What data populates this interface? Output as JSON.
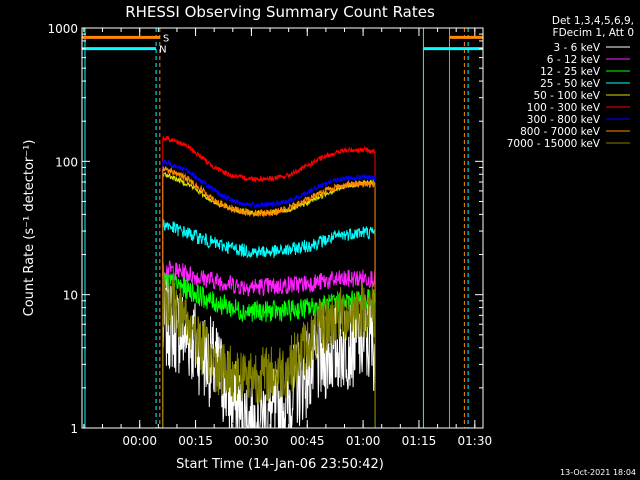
{
  "chart_data": {
    "type": "line",
    "title": "RHESSI Observing Summary Count Rates",
    "xlabel": "Start Time (14-Jan-06 23:50:42)",
    "ylabel": "Count Rate (s⁻¹ detector⁻¹)",
    "x_unit": "minutes after 14-Jan-06 23:50:42",
    "xlim": [
      -6.2,
      101.5
    ],
    "ylim": [
      1,
      1000
    ],
    "yscale": "log",
    "x_ticks": [
      "00:00",
      "00:15",
      "00:30",
      "00:45",
      "01:00",
      "01:15",
      "01:30"
    ],
    "x_tick_values": [
      9.3,
      24.3,
      39.3,
      54.3,
      69.3,
      84.3,
      99.3
    ],
    "y_ticks": [
      "1",
      "10",
      "100",
      "1000"
    ],
    "y_tick_values": [
      1,
      10,
      100,
      1000
    ],
    "legend_position": "top-right",
    "legend_header": [
      "Det 1,3,4,5,6,9,",
      "FDecim 1, Att 0"
    ],
    "series": [
      {
        "name": "3 - 6 keV",
        "color": "#ffffff",
        "x": [
          15.5,
          17,
          19,
          22,
          25,
          28,
          31,
          34,
          37,
          40,
          43,
          46,
          49,
          52,
          55,
          58,
          61,
          64,
          67,
          70,
          72.5
        ],
        "y": [
          5.5,
          6.0,
          5.6,
          5.0,
          4.0,
          3.2,
          2.5,
          1.6,
          1.2,
          1.1,
          1.2,
          1.3,
          1.6,
          2.2,
          2.8,
          3.3,
          3.8,
          4.2,
          4.5,
          4.5,
          4.2
        ]
      },
      {
        "name": "6 - 12 keV",
        "color": "#ff22ff",
        "x": [
          15.5,
          17,
          19,
          22,
          25,
          28,
          31,
          34,
          37,
          40,
          43,
          46,
          49,
          52,
          55,
          58,
          61,
          64,
          67,
          70,
          72.5
        ],
        "y": [
          15,
          15.5,
          15,
          14.5,
          13.5,
          13,
          12.5,
          12,
          11.5,
          11.5,
          11.5,
          11.5,
          11.8,
          12,
          12.2,
          12.5,
          12.8,
          13,
          13.2,
          13.3,
          13.3
        ]
      },
      {
        "name": "12 - 25 keV",
        "color": "#00ff00",
        "x": [
          15.5,
          17,
          19,
          22,
          25,
          28,
          31,
          34,
          37,
          40,
          43,
          46,
          49,
          52,
          55,
          58,
          61,
          64,
          67,
          70,
          72.5
        ],
        "y": [
          12,
          12.5,
          12,
          11,
          10,
          9,
          8.5,
          8,
          7.5,
          7.5,
          7.5,
          7.5,
          7.6,
          7.8,
          8,
          8.2,
          8.5,
          8.8,
          9,
          9.2,
          9.2
        ]
      },
      {
        "name": "25 - 50 keV",
        "color": "#00ffff",
        "x": [
          15.5,
          17,
          19,
          22,
          25,
          28,
          31,
          34,
          37,
          40,
          43,
          46,
          49,
          52,
          55,
          58,
          61,
          64,
          67,
          70,
          72.5
        ],
        "y": [
          34,
          33,
          31,
          29,
          27,
          25,
          23.5,
          22.5,
          21.5,
          21,
          21,
          21,
          21.5,
          22.5,
          23.5,
          25,
          26.5,
          28,
          29,
          29.5,
          29
        ]
      },
      {
        "name": "50 - 100 keV",
        "color": "#dddd00",
        "x": [
          15.5,
          17,
          19,
          22,
          25,
          28,
          31,
          34,
          37,
          40,
          43,
          46,
          49,
          52,
          55,
          58,
          61,
          64,
          67,
          70,
          72.5
        ],
        "y": [
          80,
          78,
          74,
          68,
          60,
          52,
          47,
          44,
          42,
          41,
          41,
          41.5,
          43,
          46,
          50,
          55,
          60,
          64,
          67,
          69,
          69
        ]
      },
      {
        "name": "100 - 300 keV",
        "color": "#ff0000",
        "x": [
          15.5,
          17,
          19,
          22,
          25,
          28,
          31,
          34,
          37,
          40,
          43,
          46,
          49,
          52,
          55,
          58,
          61,
          64,
          67,
          70,
          72.5
        ],
        "y": [
          150,
          148,
          142,
          130,
          112,
          96,
          85,
          78,
          75,
          74,
          74,
          75,
          78,
          85,
          95,
          105,
          114,
          120,
          122,
          122,
          118
        ]
      },
      {
        "name": "300 - 800 keV",
        "color": "#0000ff",
        "x": [
          15.5,
          17,
          19,
          22,
          25,
          28,
          31,
          34,
          37,
          40,
          43,
          46,
          49,
          52,
          55,
          58,
          61,
          64,
          67,
          70,
          72.5
        ],
        "y": [
          98,
          97,
          93,
          85,
          74,
          64,
          56,
          51,
          48,
          47,
          47,
          48,
          50,
          54,
          60,
          66,
          71,
          74,
          76,
          76,
          74
        ]
      },
      {
        "name": "800 - 7000 keV",
        "color": "#ff8800",
        "x": [
          15.5,
          17,
          19,
          22,
          25,
          28,
          31,
          34,
          37,
          40,
          43,
          46,
          49,
          52,
          55,
          58,
          61,
          64,
          67,
          70,
          72.5
        ],
        "y": [
          88,
          86,
          82,
          74,
          64,
          55,
          48,
          44,
          42,
          41,
          41,
          42,
          44,
          48,
          53,
          59,
          63,
          66,
          68,
          68,
          66
        ]
      },
      {
        "name": "7000 - 15000 keV",
        "color": "#808000",
        "x": [
          15.5,
          17,
          19,
          22,
          25,
          28,
          31,
          34,
          37,
          40,
          43,
          46,
          49,
          52,
          55,
          58,
          61,
          64,
          67,
          70,
          72.5
        ],
        "y": [
          8.8,
          8.5,
          8,
          6.5,
          4.5,
          3.3,
          2.8,
          2.6,
          2.5,
          2.5,
          2.5,
          2.6,
          2.8,
          3.5,
          4.5,
          5.5,
          6.5,
          7.2,
          7.5,
          7.8,
          7.5
        ]
      }
    ],
    "markers": [
      {
        "label": "S",
        "color": "#ff8800",
        "y": 850,
        "segments": [
          [
            -6.2,
            14.7
          ],
          [
            92.5,
            101.5
          ]
        ]
      },
      {
        "label": "N",
        "color": "#00ffff",
        "y": 700,
        "segments": [
          [
            -6.2,
            13.7
          ],
          [
            85.5,
            101.5
          ]
        ]
      }
    ],
    "vlines": [
      {
        "x": -5.4,
        "color": "#00ffff",
        "style": "solid"
      },
      {
        "x": 13.7,
        "color": "#00ffff",
        "style": "dashed"
      },
      {
        "x": 14.7,
        "color": "#ff8800",
        "style": "dashed"
      },
      {
        "x": 85.5,
        "color": "#00ffff",
        "style": "solid"
      },
      {
        "x": 92.5,
        "color": "#ff8800",
        "style": "solid"
      },
      {
        "x": 96.5,
        "color": "#ff8800",
        "style": "dashed"
      },
      {
        "x": 97.5,
        "color": "#00ffff",
        "style": "dashed"
      }
    ]
  },
  "footer": {
    "timestamp": "13-Oct-2021 18:04"
  }
}
